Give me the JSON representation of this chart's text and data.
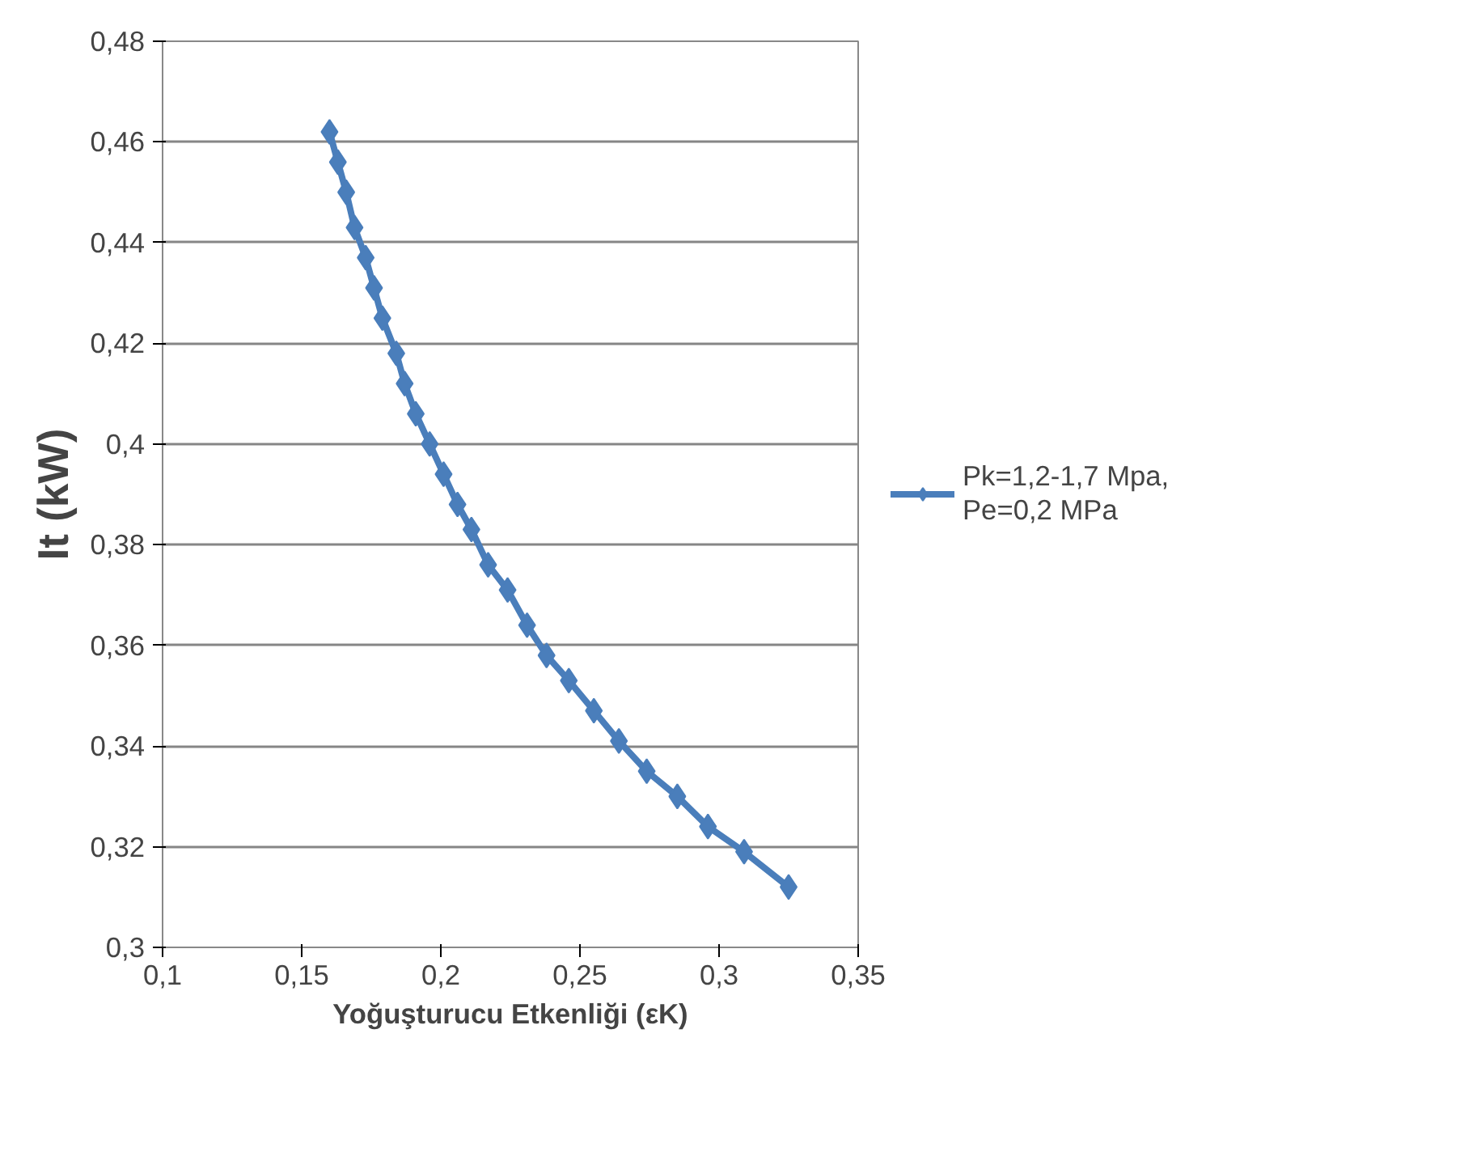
{
  "chart_data": {
    "type": "line",
    "xlabel": "Yoğuşturucu Etkenliği (εK)",
    "ylabel": "It (kW)",
    "x": [
      0.16,
      0.163,
      0.166,
      0.169,
      0.173,
      0.176,
      0.179,
      0.184,
      0.187,
      0.191,
      0.196,
      0.201,
      0.206,
      0.211,
      0.217,
      0.224,
      0.231,
      0.238,
      0.246,
      0.255,
      0.264,
      0.274,
      0.285,
      0.296,
      0.309,
      0.325
    ],
    "series": [
      {
        "name": "Pk=1,2-1,7 Mpa,\nPe=0,2 MPa",
        "color": "#4a7ebb",
        "values": [
          0.462,
          0.456,
          0.45,
          0.443,
          0.437,
          0.431,
          0.425,
          0.418,
          0.412,
          0.406,
          0.4,
          0.394,
          0.388,
          0.383,
          0.376,
          0.371,
          0.364,
          0.358,
          0.353,
          0.347,
          0.341,
          0.335,
          0.33,
          0.324,
          0.319,
          0.312
        ]
      }
    ],
    "xlim": [
      0.1,
      0.35
    ],
    "xticks": [
      {
        "value": 0.1,
        "label": "0,1"
      },
      {
        "value": 0.15,
        "label": "0,15"
      },
      {
        "value": 0.2,
        "label": "0,2"
      },
      {
        "value": 0.25,
        "label": "0,25"
      },
      {
        "value": 0.3,
        "label": "0,3"
      },
      {
        "value": 0.35,
        "label": "0,35"
      }
    ],
    "ylim": [
      0.3,
      0.48
    ],
    "yticks": [
      {
        "value": 0.3,
        "label": "0,3"
      },
      {
        "value": 0.32,
        "label": "0,32"
      },
      {
        "value": 0.34,
        "label": "0,34"
      },
      {
        "value": 0.36,
        "label": "0,36"
      },
      {
        "value": 0.38,
        "label": "0,38"
      },
      {
        "value": 0.4,
        "label": "0,4"
      },
      {
        "value": 0.42,
        "label": "0,42"
      },
      {
        "value": 0.44,
        "label": "0,44"
      },
      {
        "value": 0.46,
        "label": "0,46"
      },
      {
        "value": 0.48,
        "label": "0,48"
      }
    ],
    "grid": "y",
    "legend": "right",
    "marker": "diamond",
    "line_style": "solid"
  }
}
